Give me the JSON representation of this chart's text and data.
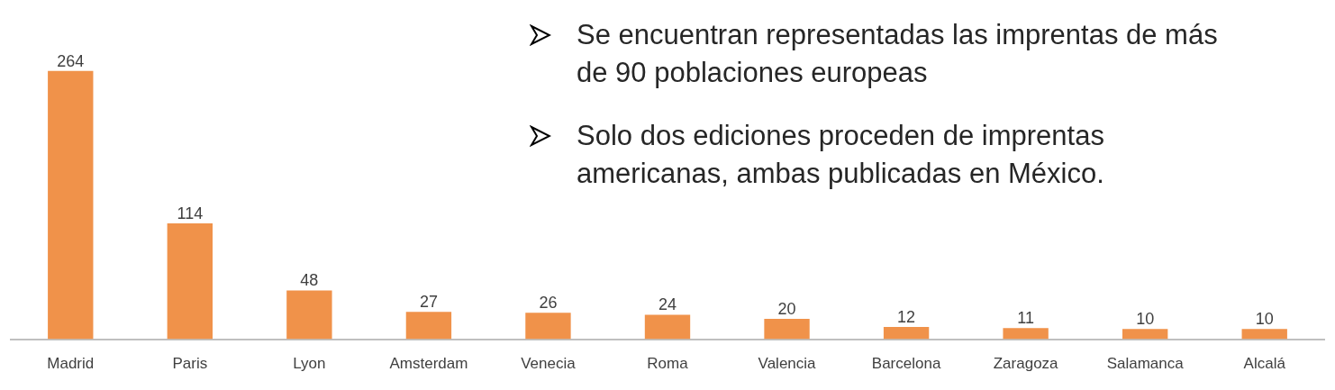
{
  "chart_data": {
    "type": "bar",
    "categories": [
      "Madrid",
      "Paris",
      "Lyon",
      "Amsterdam",
      "Venecia",
      "Roma",
      "Valencia",
      "Barcelona",
      "Zaragoza",
      "Salamanca",
      "Alcalá"
    ],
    "values": [
      264,
      114,
      48,
      27,
      26,
      24,
      20,
      12,
      11,
      10,
      10
    ],
    "color": "#f0924a",
    "data_labels": true,
    "grid": false,
    "legend": false,
    "annotations": [
      "Se encuentran representadas las imprentas de más de 90 poblaciones europeas",
      "Solo dos ediciones proceden de imprentas americanas, ambas publicadas en México."
    ]
  }
}
